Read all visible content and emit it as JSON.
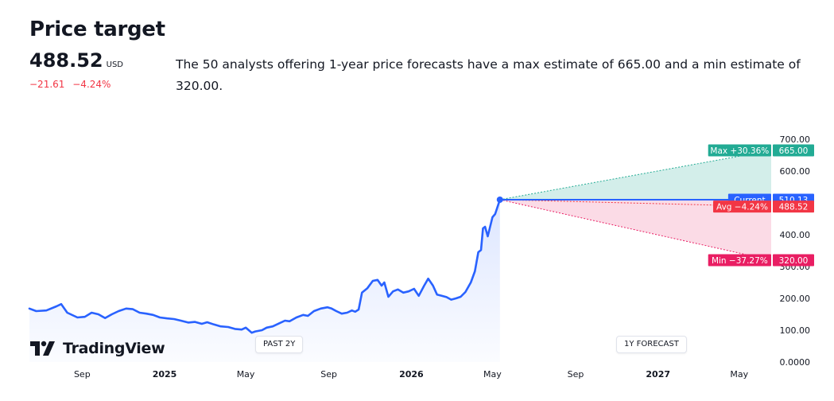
{
  "header": {
    "title": "Price target",
    "price": "488.52",
    "currency": "USD",
    "change_abs": "−21.61",
    "change_pct": "−4.24%",
    "summary": "The 50 analysts offering 1-year price forecasts have a max estimate of 665.00 and a min estimate of 320.00."
  },
  "brand": {
    "name": "TradingView"
  },
  "buttons": {
    "past": "PAST 2Y",
    "forecast": "1Y FORECAST"
  },
  "colors": {
    "line": "#2962ff",
    "max": "#22ab94",
    "min": "#e91e63",
    "avg": "#f23645",
    "current": "#2962ff",
    "negative": "#f23645"
  },
  "chart_data": {
    "type": "line",
    "ylim": [
      0,
      700
    ],
    "y_ticks": [
      "0.0000",
      "100.00",
      "200.00",
      "300.00",
      "400.00",
      "500.00",
      "600.00",
      "700.00"
    ],
    "y_tick_values": [
      0,
      100,
      200,
      300,
      400,
      500,
      600,
      700
    ],
    "x_tick_labels": [
      "Sep",
      "2025",
      "May",
      "Sep",
      "2026",
      "May",
      "Sep",
      "2027",
      "May"
    ],
    "x_tick_dates": [
      "2024-09",
      "2025-01",
      "2025-05",
      "2025-09",
      "2026-01",
      "2026-05",
      "2026-09",
      "2027-01",
      "2027-05"
    ],
    "x_range": [
      "2024-06-15",
      "2027-06-15"
    ],
    "series": [
      {
        "type": "history",
        "points": [
          [
            "2024-06-15",
            168
          ],
          [
            "2024-06-25",
            160
          ],
          [
            "2024-07-10",
            162
          ],
          [
            "2024-07-25",
            175
          ],
          [
            "2024-08-01",
            182
          ],
          [
            "2024-08-10",
            155
          ],
          [
            "2024-08-25",
            140
          ],
          [
            "2024-09-05",
            142
          ],
          [
            "2024-09-15",
            155
          ],
          [
            "2024-09-25",
            150
          ],
          [
            "2024-10-05",
            138
          ],
          [
            "2024-10-15",
            150
          ],
          [
            "2024-10-25",
            160
          ],
          [
            "2024-11-05",
            168
          ],
          [
            "2024-11-15",
            166
          ],
          [
            "2024-11-25",
            155
          ],
          [
            "2024-12-05",
            152
          ],
          [
            "2024-12-15",
            148
          ],
          [
            "2024-12-25",
            140
          ],
          [
            "2025-01-05",
            137
          ],
          [
            "2025-01-15",
            135
          ],
          [
            "2025-01-25",
            130
          ],
          [
            "2025-02-05",
            124
          ],
          [
            "2025-02-15",
            126
          ],
          [
            "2025-02-25",
            120
          ],
          [
            "2025-03-05",
            125
          ],
          [
            "2025-03-15",
            118
          ],
          [
            "2025-03-25",
            112
          ],
          [
            "2025-04-05",
            110
          ],
          [
            "2025-04-15",
            104
          ],
          [
            "2025-04-25",
            102
          ],
          [
            "2025-05-01",
            108
          ],
          [
            "2025-05-10",
            92
          ],
          [
            "2025-05-15",
            96
          ],
          [
            "2025-05-25",
            100
          ],
          [
            "2025-06-01",
            108
          ],
          [
            "2025-06-10",
            112
          ],
          [
            "2025-06-20",
            122
          ],
          [
            "2025-06-28",
            130
          ],
          [
            "2025-07-05",
            128
          ],
          [
            "2025-07-15",
            140
          ],
          [
            "2025-07-25",
            148
          ],
          [
            "2025-08-01",
            145
          ],
          [
            "2025-08-10",
            160
          ],
          [
            "2025-08-20",
            168
          ],
          [
            "2025-08-30",
            172
          ],
          [
            "2025-09-05",
            168
          ],
          [
            "2025-09-12",
            160
          ],
          [
            "2025-09-20",
            152
          ],
          [
            "2025-09-28",
            155
          ],
          [
            "2025-10-05",
            162
          ],
          [
            "2025-10-10",
            158
          ],
          [
            "2025-10-15",
            165
          ],
          [
            "2025-10-20",
            218
          ],
          [
            "2025-10-28",
            232
          ],
          [
            "2025-11-05",
            255
          ],
          [
            "2025-11-12",
            258
          ],
          [
            "2025-11-18",
            240
          ],
          [
            "2025-11-22",
            250
          ],
          [
            "2025-11-28",
            205
          ],
          [
            "2025-12-05",
            222
          ],
          [
            "2025-12-12",
            228
          ],
          [
            "2025-12-20",
            218
          ],
          [
            "2025-12-28",
            222
          ],
          [
            "2026-01-05",
            230
          ],
          [
            "2026-01-12",
            208
          ],
          [
            "2026-01-20",
            240
          ],
          [
            "2026-01-26",
            262
          ],
          [
            "2026-02-02",
            240
          ],
          [
            "2026-02-08",
            212
          ],
          [
            "2026-02-15",
            208
          ],
          [
            "2026-02-22",
            204
          ],
          [
            "2026-03-01",
            196
          ],
          [
            "2026-03-08",
            200
          ],
          [
            "2026-03-15",
            205
          ],
          [
            "2026-03-22",
            220
          ],
          [
            "2026-03-30",
            250
          ],
          [
            "2026-04-05",
            285
          ],
          [
            "2026-04-10",
            345
          ],
          [
            "2026-04-14",
            352
          ],
          [
            "2026-04-17",
            420
          ],
          [
            "2026-04-20",
            425
          ],
          [
            "2026-04-24",
            395
          ],
          [
            "2026-05-01",
            455
          ],
          [
            "2026-05-05",
            465
          ],
          [
            "2026-05-12",
            510.13
          ]
        ]
      }
    ],
    "forecast": {
      "current": {
        "label": "Current",
        "value": "510.13"
      },
      "max": {
        "label": "Max +30.36%",
        "value": "665.00"
      },
      "avg": {
        "label": "Avg −4.24%",
        "value": "488.52"
      },
      "min": {
        "label": "Min −37.27%",
        "value": "320.00"
      }
    }
  }
}
